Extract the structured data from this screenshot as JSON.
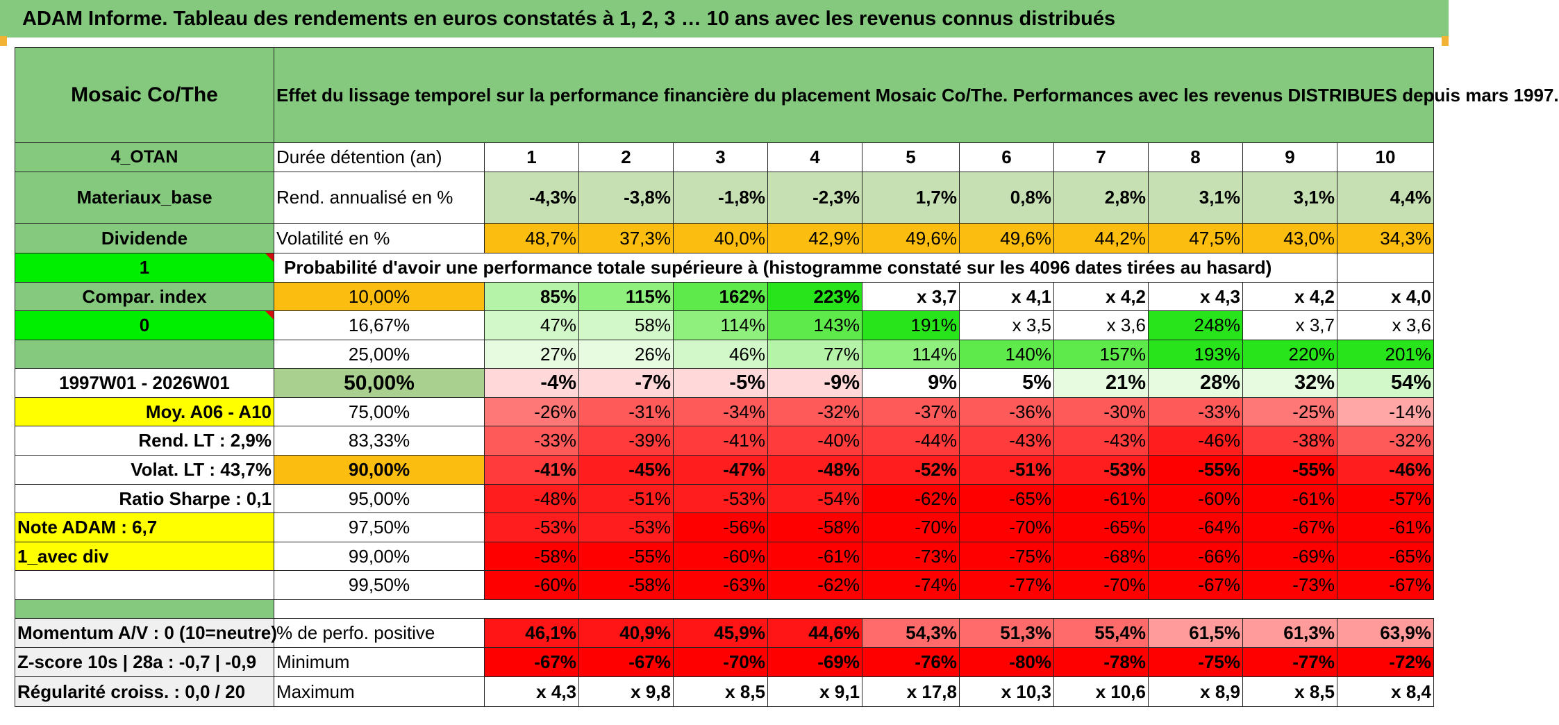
{
  "title": "ADAM Informe. Tableau des rendements en euros constatés à 1, 2, 3 … 10 ans avec les revenus connus distribués",
  "left": {
    "name": "Mosaic Co/The",
    "code": "4_OTAN",
    "sector": "Materiaux_base",
    "dividend": "Dividende",
    "one": "1",
    "compar": "Compar. index",
    "zero": "0",
    "period": "1997W01 - 2026W01",
    "moy": "Moy. A06 - A10",
    "rend": "Rend. LT :   2,9%",
    "volat": "Volat. LT :   43,7%",
    "sharpe": "Ratio Sharpe :    0,1",
    "note": "Note ADAM : 6,7",
    "avecdiv": "1_avec div",
    "momentum": "Momentum A/V : 0 (10=neutre)",
    "zscore": "Z-score 10s | 28a : -0,7 | -0,9",
    "regularite": "Régularité croiss. : 0,0 / 20"
  },
  "description": "Effet du lissage temporel sur la performance financière du placement Mosaic Co/The. Performances avec les revenus DISTRIBUES depuis mars 1997.",
  "duration_label": "Durée détention (an)",
  "years": [
    "1",
    "2",
    "3",
    "4",
    "5",
    "6",
    "7",
    "8",
    "9",
    "10"
  ],
  "rend_label": "Rend. annualisé en %",
  "rend_values": [
    "-4,3%",
    "-3,8%",
    "-1,8%",
    "-2,3%",
    "1,7%",
    "0,8%",
    "2,8%",
    "3,1%",
    "3,1%",
    "4,4%"
  ],
  "vol_label": "Volatilité en %",
  "vol_values": [
    "48,7%",
    "37,3%",
    "40,0%",
    "42,9%",
    "49,6%",
    "49,6%",
    "44,2%",
    "47,5%",
    "43,0%",
    "34,3%"
  ],
  "prob_label": "Probabilité d'avoir une performance totale supérieure à (histogramme constaté sur les 4096 dates tirées au hasard)",
  "quantiles": [
    {
      "label": "10,00%",
      "values": [
        "85%",
        "115%",
        "162%",
        "223%",
        "x 3,7",
        "x 4,1",
        "x 4,2",
        "x 4,3",
        "x 4,2",
        "x 4,0"
      ]
    },
    {
      "label": "16,67%",
      "values": [
        "47%",
        "58%",
        "114%",
        "143%",
        "191%",
        "x 3,5",
        "x 3,6",
        "248%",
        "x 3,7",
        "x 3,6"
      ]
    },
    {
      "label": "25,00%",
      "values": [
        "27%",
        "26%",
        "46%",
        "77%",
        "114%",
        "140%",
        "157%",
        "193%",
        "220%",
        "201%"
      ]
    },
    {
      "label": "50,00%",
      "values": [
        "-4%",
        "-7%",
        "-5%",
        "-9%",
        "9%",
        "5%",
        "21%",
        "28%",
        "32%",
        "54%"
      ]
    },
    {
      "label": "75,00%",
      "values": [
        "-26%",
        "-31%",
        "-34%",
        "-32%",
        "-37%",
        "-36%",
        "-30%",
        "-33%",
        "-25%",
        "-14%"
      ]
    },
    {
      "label": "83,33%",
      "values": [
        "-33%",
        "-39%",
        "-41%",
        "-40%",
        "-44%",
        "-43%",
        "-43%",
        "-46%",
        "-38%",
        "-32%"
      ]
    },
    {
      "label": "90,00%",
      "values": [
        "-41%",
        "-45%",
        "-47%",
        "-48%",
        "-52%",
        "-51%",
        "-53%",
        "-55%",
        "-55%",
        "-46%"
      ]
    },
    {
      "label": "95,00%",
      "values": [
        "-48%",
        "-51%",
        "-53%",
        "-54%",
        "-62%",
        "-65%",
        "-61%",
        "-60%",
        "-61%",
        "-57%"
      ]
    },
    {
      "label": "97,50%",
      "values": [
        "-53%",
        "-53%",
        "-56%",
        "-58%",
        "-70%",
        "-70%",
        "-65%",
        "-64%",
        "-67%",
        "-61%"
      ]
    },
    {
      "label": "99,00%",
      "values": [
        "-58%",
        "-55%",
        "-60%",
        "-61%",
        "-73%",
        "-75%",
        "-68%",
        "-66%",
        "-69%",
        "-65%"
      ]
    },
    {
      "label": "99,50%",
      "values": [
        "-60%",
        "-58%",
        "-63%",
        "-62%",
        "-74%",
        "-77%",
        "-70%",
        "-67%",
        "-73%",
        "-67%"
      ]
    }
  ],
  "bottom": [
    {
      "label": "% de perfo. positive",
      "values": [
        "46,1%",
        "40,9%",
        "45,9%",
        "44,6%",
        "54,3%",
        "51,3%",
        "55,4%",
        "61,5%",
        "61,3%",
        "63,9%"
      ]
    },
    {
      "label": "Minimum",
      "values": [
        "-67%",
        "-67%",
        "-70%",
        "-69%",
        "-76%",
        "-80%",
        "-78%",
        "-75%",
        "-77%",
        "-72%"
      ]
    },
    {
      "label": "Maximum",
      "values": [
        "x 4,3",
        "x 9,8",
        "x 8,5",
        "x 9,1",
        "x 17,8",
        "x 10,3",
        "x 10,6",
        "x 8,9",
        "x 8,5",
        "x 8,4"
      ]
    }
  ],
  "colors": {
    "header_green": "#84c97e",
    "bright_green": "#00ee00",
    "orange": "#fbbd10",
    "yellow": "#ffff00",
    "red_text": "#d01010"
  }
}
